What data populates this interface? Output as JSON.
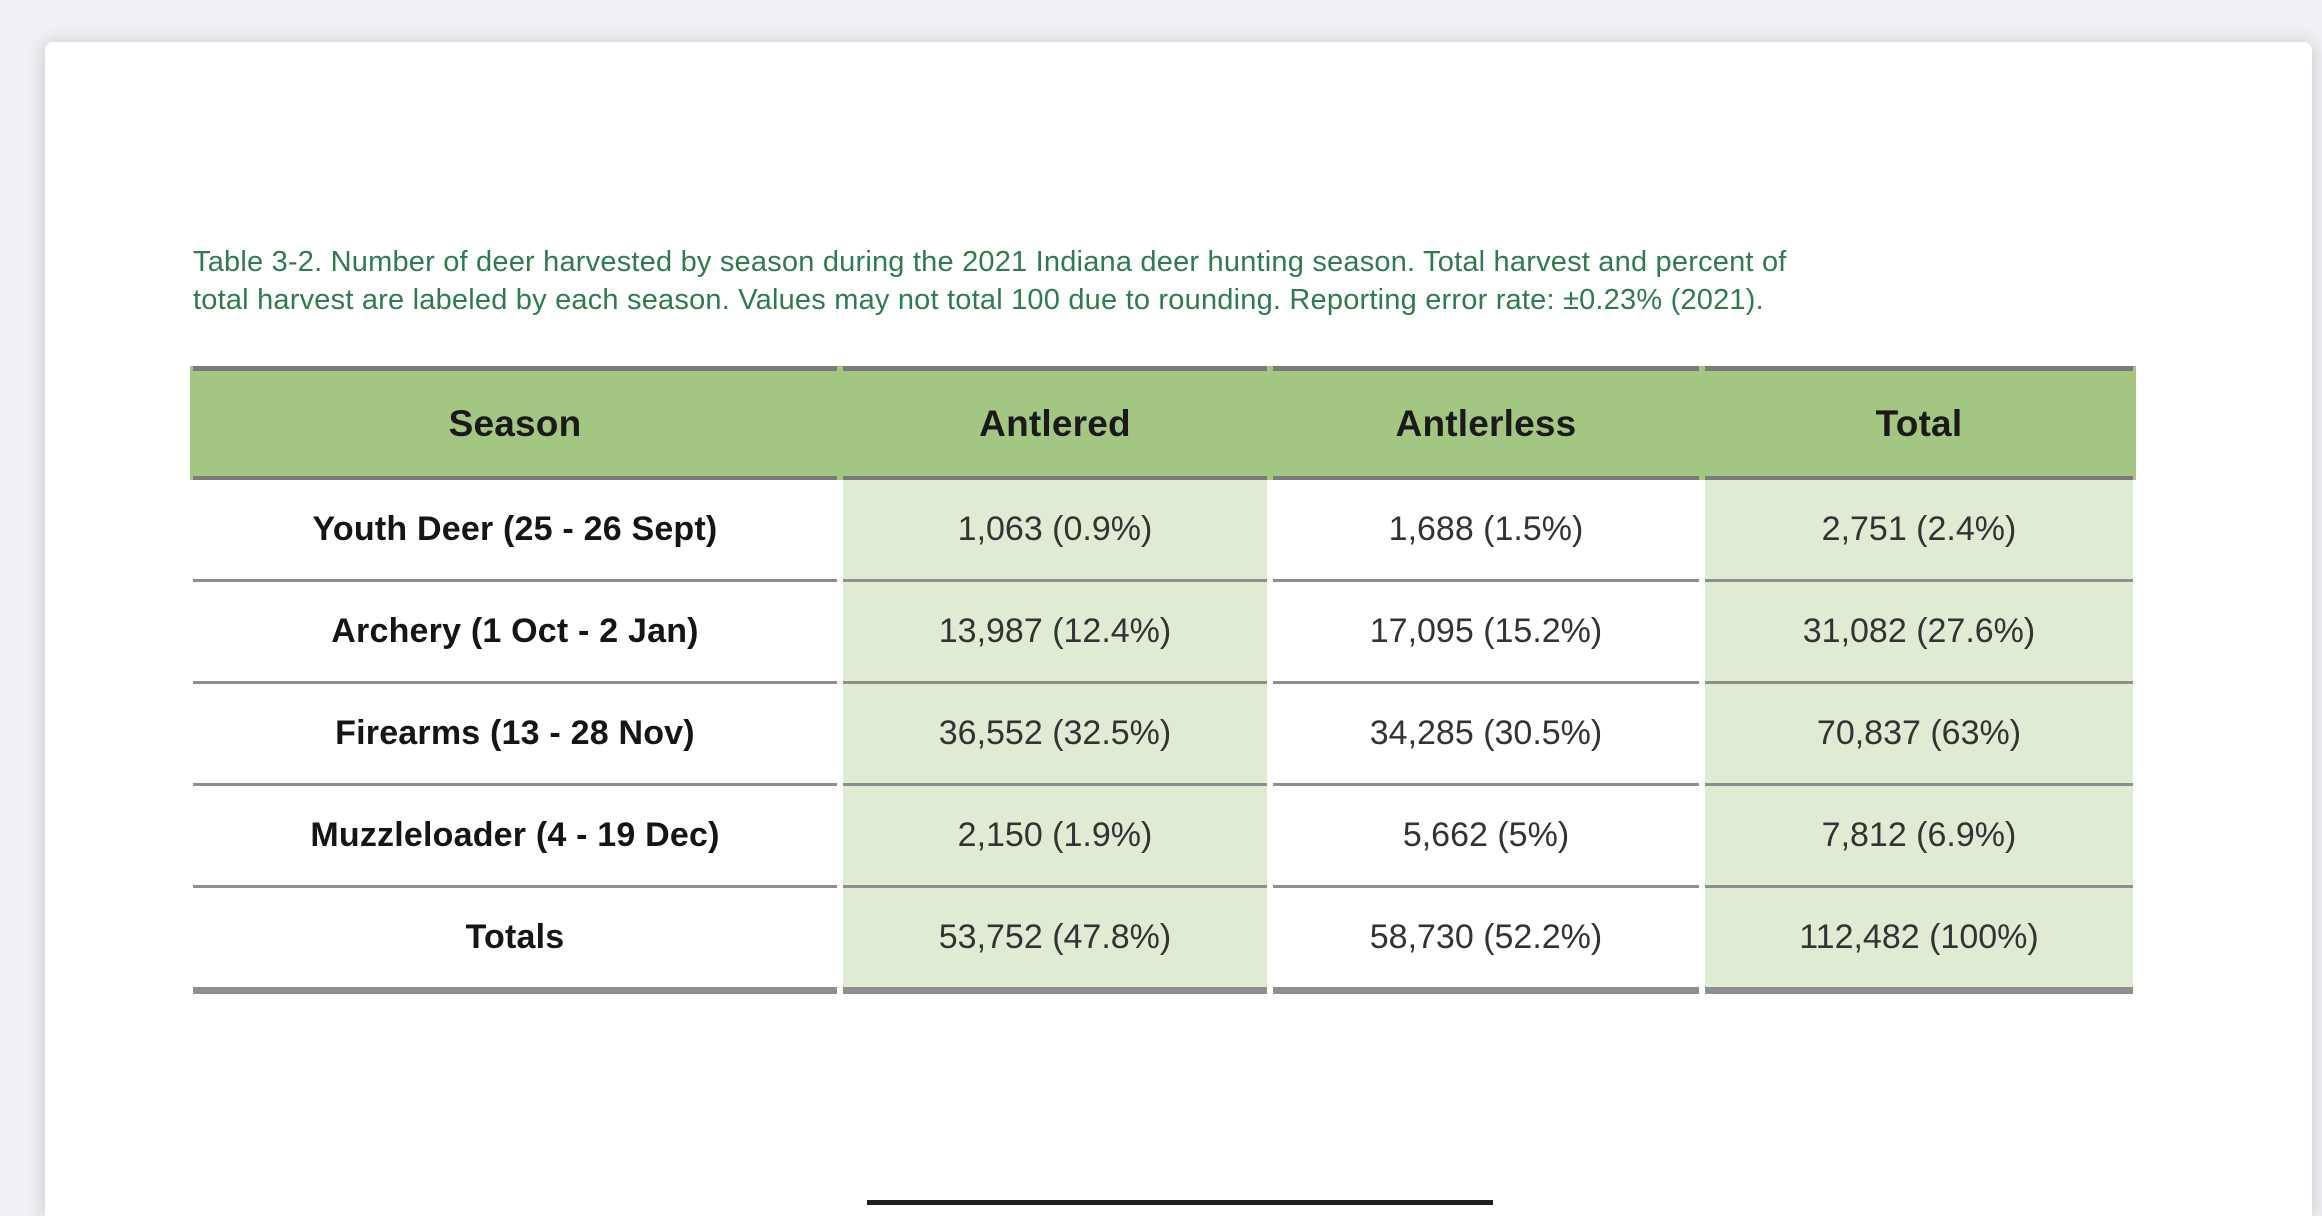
{
  "document": {
    "caption_line1": "Table 3-2. Number of deer harvested by season during the 2021 Indiana deer hunting season. Total harvest and percent of",
    "caption_line2": "total harvest are labeled by each season. Values may not total 100 due to rounding. Reporting error rate: ±0.23% (2021)."
  },
  "table": {
    "columns": [
      "Season",
      "Antlered",
      "Antlerless",
      "Total"
    ],
    "rows": [
      [
        "Youth Deer (25 - 26 Sept)",
        "1,063 (0.9%)",
        "1,688 (1.5%)",
        "2,751 (2.4%)"
      ],
      [
        "Archery (1 Oct - 2 Jan)",
        "13,987 (12.4%)",
        "17,095 (15.2%)",
        "31,082 (27.6%)"
      ],
      [
        "Firearms (13 - 28 Nov)",
        "36,552 (32.5%)",
        "34,285 (30.5%)",
        "70,837 (63%)"
      ],
      [
        "Muzzleloader (4 - 19 Dec)",
        "2,150 (1.9%)",
        "5,662 (5%)",
        "7,812 (6.9%)"
      ]
    ],
    "totals_row": [
      "Totals",
      "53,752 (47.8%)",
      "58,730 (52.2%)",
      "112,482 (100%)"
    ]
  },
  "colors": {
    "canvas_bg": "#F0F1F4",
    "page_bg": "#FFFFFF",
    "caption_green": "#2E7B4F",
    "header_green": "#A4C683",
    "cell_green": "#DFECD3",
    "grid_gray": "#8E8E8E",
    "rule_dark": "#7B7B7B",
    "figure_rule_dark": "#1F1F1F"
  }
}
